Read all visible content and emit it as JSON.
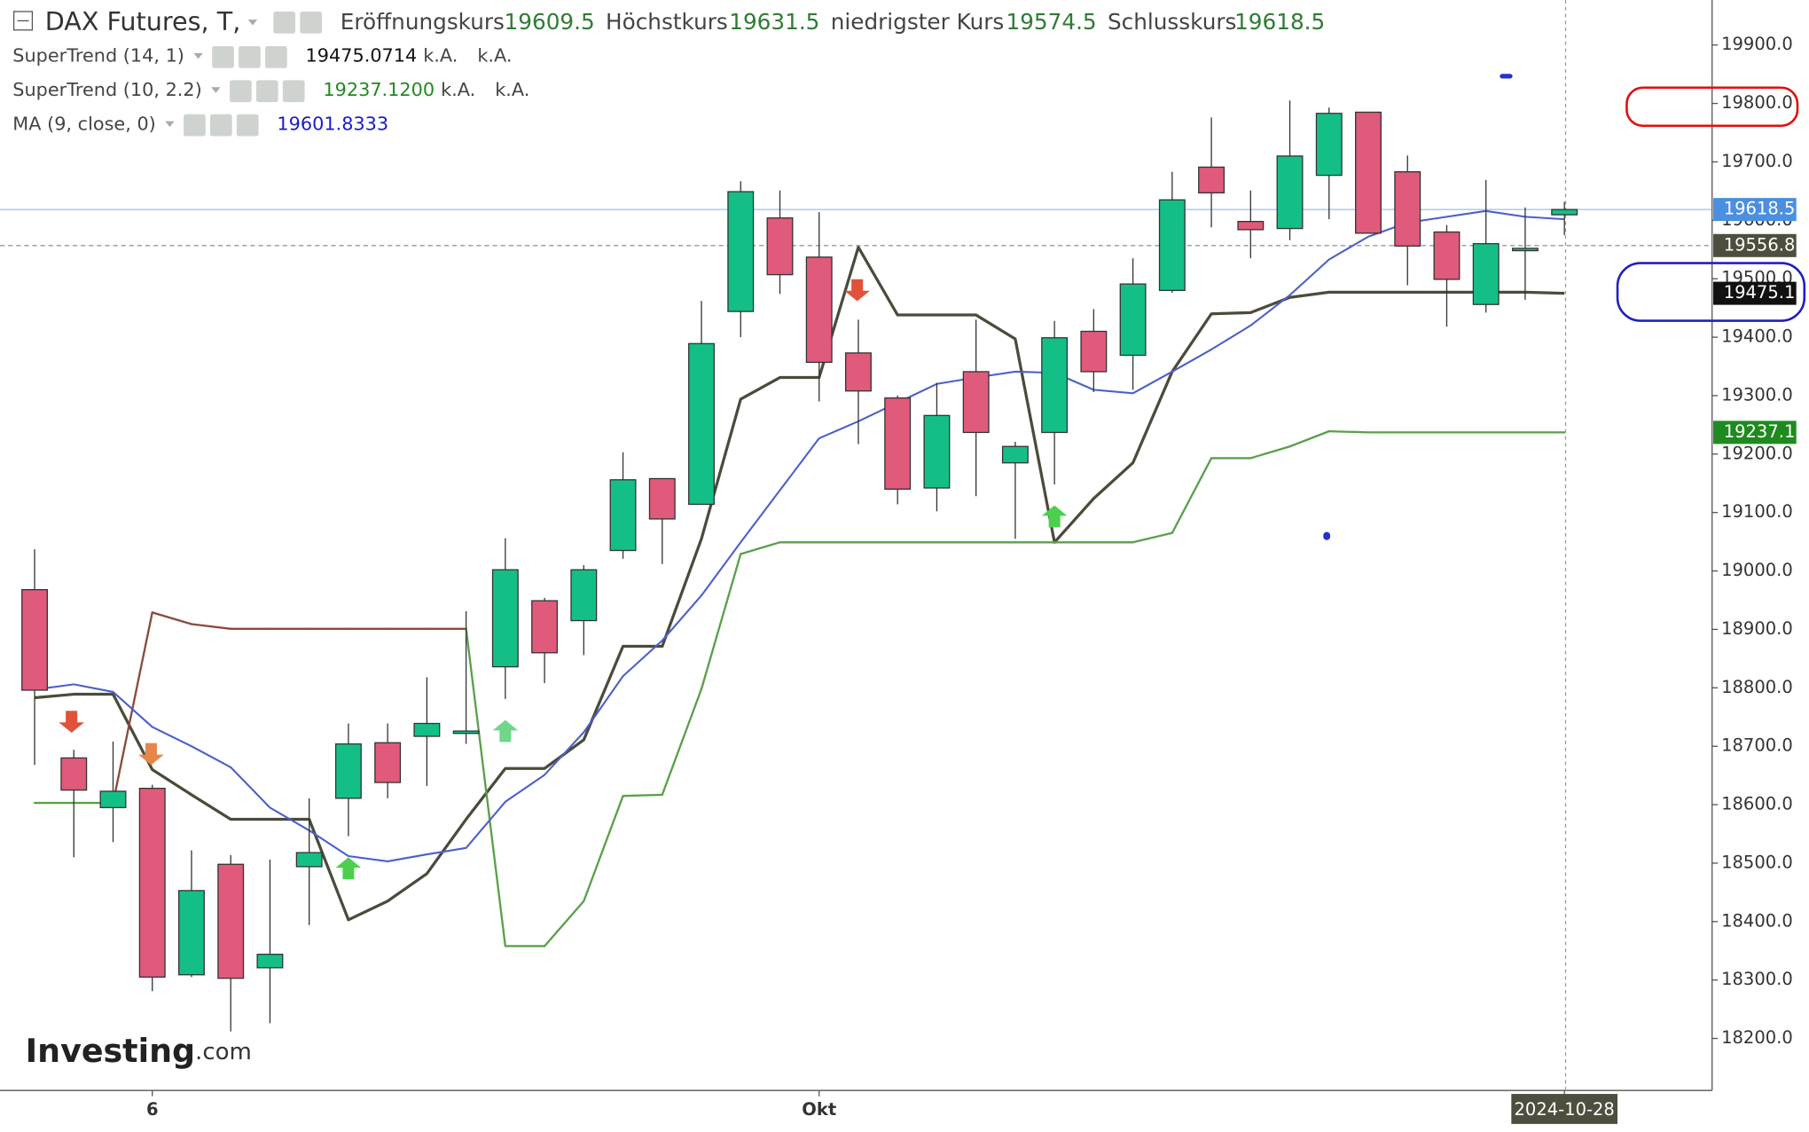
{
  "chart_data": {
    "type": "candlestick",
    "title": "DAX Futures, T,",
    "ohlc_labels": [
      "Eröffnungskurs",
      "Höchstkurs",
      "niedrigster Kurs",
      "Schlusskurs"
    ],
    "categories": [
      null,
      null,
      null,
      "6",
      null,
      null,
      null,
      null,
      null,
      null,
      null,
      null,
      null,
      null,
      null,
      null,
      null,
      null,
      null,
      null,
      "Okt",
      null,
      null,
      null,
      null,
      null,
      null,
      null,
      null,
      null,
      null,
      null,
      null,
      null,
      null,
      null,
      null,
      null,
      null,
      "2024-10-28"
    ],
    "open": [
      18968,
      18680,
      18595,
      18628,
      18309,
      18498,
      18321,
      18494,
      18611,
      18706,
      18717,
      18722,
      18836,
      18949,
      18915,
      19035,
      19158,
      19114,
      19444,
      19604,
      19537,
      19373,
      19296,
      19142,
      19341,
      19185,
      19237,
      19410,
      19369,
      19480,
      19691,
      19598,
      19586,
      19677,
      19785,
      19683,
      19580,
      19456,
      19550,
      19609.5
    ],
    "high": [
      19037,
      18694,
      18708,
      18634,
      18522,
      18514,
      18506,
      18611,
      18739,
      18739,
      18818,
      18931,
      19056,
      18954,
      19010,
      19203,
      19158,
      19462,
      19667,
      19651,
      19614,
      19430,
      19300,
      19322,
      19430,
      19221,
      19428,
      19448,
      19535,
      19683,
      19776,
      19651,
      19805,
      19793,
      19785,
      19711,
      19592,
      19669,
      19622,
      19631.5
    ],
    "low": [
      18668,
      18510,
      18536,
      18281,
      18305,
      18212,
      18226,
      18394,
      18546,
      18611,
      18632,
      18704,
      18781,
      18808,
      18856,
      19021,
      19012,
      19114,
      19400,
      19474,
      19290,
      19217,
      19114,
      19102,
      19128,
      19055,
      19148,
      19306,
      19310,
      19476,
      19588,
      19535,
      19566,
      19602,
      19578,
      19489,
      19418,
      19442,
      19464,
      19574.5
    ],
    "close": [
      18796,
      18625,
      18623,
      18305,
      18453,
      18303,
      18344,
      18518,
      18704,
      18638,
      18739,
      18726,
      19002,
      18860,
      19002,
      19156,
      19089,
      19389,
      19649,
      19507,
      19357,
      19308,
      19140,
      19266,
      19237,
      19213,
      19399,
      19341,
      19491,
      19635,
      19647,
      19584,
      19710,
      19783,
      19578,
      19556,
      19499,
      19560,
      19552,
      19618.5
    ],
    "up_color": "#14bf87",
    "down_color": "#e05a7b",
    "series": [
      {
        "name": "SuperTrend (14, 1)",
        "color": "#4b4b3b",
        "width": 2.5,
        "legend_value": 19475.0714,
        "legend_color": "#111111",
        "legend_notes": [
          "k.A.",
          "k.A."
        ],
        "values": [
          18783,
          18789,
          18789,
          18660,
          18617,
          18575,
          18575,
          18575,
          18403,
          18435,
          18482,
          18575,
          18662,
          18662,
          18711,
          18871,
          18871,
          19055,
          19294,
          19331,
          19331,
          19554,
          19438,
          19438,
          19438,
          19397,
          19049,
          19124,
          19185,
          19341,
          19440,
          19442,
          19468,
          19477,
          19477,
          19477,
          19477,
          19477,
          19477,
          19475.0714
        ]
      },
      {
        "name": "SuperTrend (10, 2.2)",
        "color": "#5aa04a",
        "down_color": "#8b4a3e",
        "width": 1.8,
        "legend_value": {
          "value": 19237.12,
          "label": "19237.1200"
        },
        "legend_color": "#1f8a1f",
        "legend_notes": [
          "k.A.",
          "k.A."
        ],
        "values": [
          18603,
          18603,
          18603,
          18929,
          18909,
          18901,
          18901,
          18901,
          18901,
          18901,
          18901,
          18901,
          18358,
          18358,
          18435,
          18615,
          18617,
          18798,
          19029,
          19049,
          19049,
          19049,
          19049,
          19049,
          19049,
          19049,
          19049,
          19049,
          19049,
          19065,
          19193,
          19193,
          19213,
          19239,
          19237.12,
          19237.12,
          19237.12,
          19237.12,
          19237.12,
          19237.12
        ]
      },
      {
        "name": "MA (9, close, 0)",
        "color": "#4b5fc8",
        "width": 1.6,
        "legend_value": 19601.8333,
        "legend_color": "#1a1acc",
        "values": [
          18797,
          18806,
          18793,
          18733,
          18700,
          18664,
          18595,
          18556,
          18512,
          18503,
          18515,
          18526,
          18605,
          18651,
          18724,
          18820,
          18881,
          18958,
          19049,
          19138,
          19227,
          19256,
          19288,
          19320,
          19331,
          19341,
          19339,
          19310,
          19304,
          19341,
          19379,
          19420,
          19472,
          19533,
          19572,
          19596,
          19606,
          19616,
          19606,
          19601.8333
        ]
      }
    ],
    "ylim": [
      18111,
      19977
    ],
    "yticks": [
      {
        "value": 18200,
        "label": "18200.0"
      },
      {
        "value": 18300,
        "label": "18300.0"
      },
      {
        "value": 18400,
        "label": "18400.0"
      },
      {
        "value": 18500,
        "label": "18500.0"
      },
      {
        "value": 18600,
        "label": "18600.0"
      },
      {
        "value": 18700,
        "label": "18700.0"
      },
      {
        "value": 18800,
        "label": "18800.0"
      },
      {
        "value": 18900,
        "label": "18900.0"
      },
      {
        "value": 19000,
        "label": "19000.0"
      },
      {
        "value": 19100,
        "label": "19100.0"
      },
      {
        "value": 19200,
        "label": "19200.0"
      },
      {
        "value": 19300,
        "label": "19300.0"
      },
      {
        "value": 19400,
        "label": "19400.0"
      },
      {
        "value": 19500,
        "label": "19500.0"
      },
      {
        "value": 19600,
        "label": "19600.0"
      },
      {
        "value": 19700,
        "label": "19700.0"
      },
      {
        "value": 19800,
        "label": "19800.0"
      },
      {
        "value": 19900,
        "label": "19900.0"
      }
    ],
    "price_markers": [
      {
        "value": 19618.5,
        "color": "#4a8fe0",
        "line": "solid"
      },
      {
        "value": 19556.8,
        "color": "#4e4e3e",
        "line": "dashed"
      },
      {
        "value": 19475.1,
        "color": "#111111"
      },
      {
        "value": 19237.1,
        "color": "#1f8a1f"
      }
    ],
    "grid": false,
    "watermark": {
      "brand": "Investing",
      "suffix": ".com"
    }
  }
}
